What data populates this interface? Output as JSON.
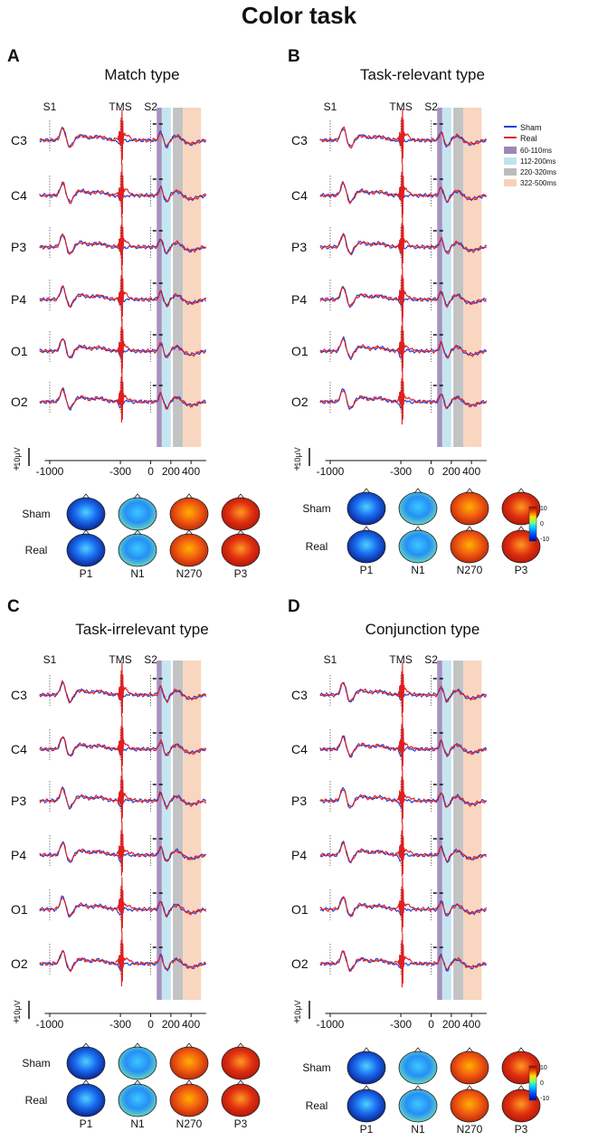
{
  "figure": {
    "title": "Color task"
  },
  "chart_data": [
    {
      "type": "line",
      "panel": "A",
      "title": "Match type",
      "channels": [
        "C3",
        "C4",
        "P3",
        "P4",
        "O1",
        "O2"
      ],
      "series": [
        {
          "name": "Sham",
          "color": "#1f3fe0"
        },
        {
          "name": "Real",
          "color": "#e01f1f"
        }
      ],
      "event_labels": [
        "S1",
        "TMS",
        "S2"
      ],
      "event_times_ms": [
        -1000,
        -300,
        0
      ],
      "xticks": [
        -1000,
        -300,
        0,
        200,
        400
      ],
      "xlim": [
        -1100,
        550
      ],
      "windows": [
        {
          "label": "60-110ms",
          "start": 60,
          "end": 110,
          "color": "#9c87b8"
        },
        {
          "label": "112-200ms",
          "start": 112,
          "end": 200,
          "color": "#bfe3ee"
        },
        {
          "label": "220-320ms",
          "start": 220,
          "end": 320,
          "color": "#bcbcbc"
        },
        {
          "label": "322-500ms",
          "start": 322,
          "end": 500,
          "color": "#f8d2b8"
        }
      ],
      "scale": {
        "amplitude": "10μV",
        "polarity": "+"
      },
      "topo_rows": [
        "Sham",
        "Real"
      ],
      "topo_components": [
        "P1",
        "N1",
        "N270",
        "P3"
      ]
    },
    {
      "type": "line",
      "panel": "B",
      "title": "Task-relevant type",
      "channels": [
        "C3",
        "C4",
        "P3",
        "P4",
        "O1",
        "O2"
      ],
      "series": [
        {
          "name": "Sham",
          "color": "#1f3fe0"
        },
        {
          "name": "Real",
          "color": "#e01f1f"
        }
      ],
      "event_labels": [
        "S1",
        "TMS",
        "S2"
      ],
      "event_times_ms": [
        -1000,
        -300,
        0
      ],
      "xticks": [
        -1000,
        -300,
        0,
        200,
        400
      ],
      "xlim": [
        -1100,
        550
      ],
      "windows": [
        {
          "label": "60-110ms",
          "start": 60,
          "end": 110,
          "color": "#9c87b8"
        },
        {
          "label": "112-200ms",
          "start": 112,
          "end": 200,
          "color": "#bfe3ee"
        },
        {
          "label": "220-320ms",
          "start": 220,
          "end": 320,
          "color": "#bcbcbc"
        },
        {
          "label": "322-500ms",
          "start": 322,
          "end": 500,
          "color": "#f8d2b8"
        }
      ],
      "scale": {
        "amplitude": "10μV",
        "polarity": "+"
      },
      "topo_rows": [
        "Sham",
        "Real"
      ],
      "topo_components": [
        "P1",
        "N1",
        "N270",
        "P3"
      ],
      "colorbar": {
        "max": "10",
        "mid": "0",
        "min": "-10"
      }
    },
    {
      "type": "line",
      "panel": "C",
      "title": "Task-irrelevant type",
      "channels": [
        "C3",
        "C4",
        "P3",
        "P4",
        "O1",
        "O2"
      ],
      "series": [
        {
          "name": "Sham",
          "color": "#1f3fe0"
        },
        {
          "name": "Real",
          "color": "#e01f1f"
        }
      ],
      "event_labels": [
        "S1",
        "TMS",
        "S2"
      ],
      "event_times_ms": [
        -1000,
        -300,
        0
      ],
      "xticks": [
        -1000,
        -300,
        0,
        200,
        400
      ],
      "xlim": [
        -1100,
        550
      ],
      "windows": [
        {
          "label": "60-110ms",
          "start": 60,
          "end": 110,
          "color": "#9c87b8"
        },
        {
          "label": "112-200ms",
          "start": 112,
          "end": 200,
          "color": "#bfe3ee"
        },
        {
          "label": "220-320ms",
          "start": 220,
          "end": 320,
          "color": "#bcbcbc"
        },
        {
          "label": "322-500ms",
          "start": 322,
          "end": 500,
          "color": "#f8d2b8"
        }
      ],
      "scale": {
        "amplitude": "10μV",
        "polarity": "+"
      },
      "topo_rows": [
        "Sham",
        "Real"
      ],
      "topo_components": [
        "P1",
        "N1",
        "N270",
        "P3"
      ]
    },
    {
      "type": "line",
      "panel": "D",
      "title": "Conjunction type",
      "channels": [
        "C3",
        "C4",
        "P3",
        "P4",
        "O1",
        "O2"
      ],
      "series": [
        {
          "name": "Sham",
          "color": "#1f3fe0"
        },
        {
          "name": "Real",
          "color": "#e01f1f"
        }
      ],
      "event_labels": [
        "S1",
        "TMS",
        "S2"
      ],
      "event_times_ms": [
        -1000,
        -300,
        0
      ],
      "xticks": [
        -1000,
        -300,
        0,
        200,
        400
      ],
      "xlim": [
        -1100,
        550
      ],
      "windows": [
        {
          "label": "60-110ms",
          "start": 60,
          "end": 110,
          "color": "#9c87b8"
        },
        {
          "label": "112-200ms",
          "start": 112,
          "end": 200,
          "color": "#bfe3ee"
        },
        {
          "label": "220-320ms",
          "start": 220,
          "end": 320,
          "color": "#bcbcbc"
        },
        {
          "label": "322-500ms",
          "start": 322,
          "end": 500,
          "color": "#f8d2b8"
        }
      ],
      "scale": {
        "amplitude": "10μV",
        "polarity": "+"
      },
      "topo_rows": [
        "Sham",
        "Real"
      ],
      "topo_components": [
        "P1",
        "N1",
        "N270",
        "P3"
      ],
      "colorbar": {
        "max": "10",
        "mid": "0",
        "min": "-10"
      }
    }
  ]
}
